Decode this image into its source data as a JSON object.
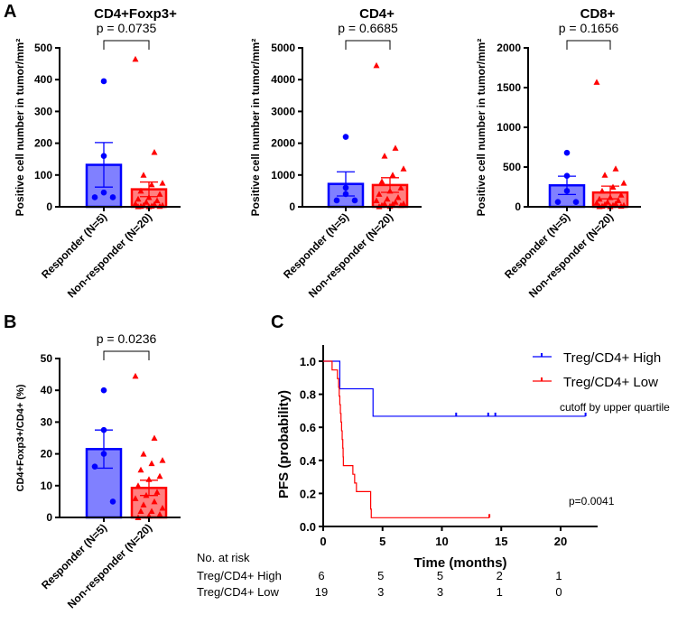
{
  "colors": {
    "responder": "#0000ff",
    "responder_fill": "#8080ff",
    "nonresponder": "#ff0000",
    "nonresponder_fill": "#ff8080",
    "axis": "#000000"
  },
  "panel_letters": [
    "A",
    "B",
    "C"
  ],
  "chart_data": [
    {
      "type": "bar",
      "panel": "A",
      "title": "CD4+Foxp3+",
      "ylabel": "Positive cell number in tumor/mm²",
      "ylim": [
        0,
        500
      ],
      "yticks": [
        "0",
        "100",
        "200",
        "300",
        "400",
        "500"
      ],
      "categories": [
        "Responder (N=5)",
        "Non-responder (N=20)"
      ],
      "means": [
        132,
        55
      ],
      "sem": [
        70,
        23
      ],
      "points": [
        [
          395,
          160,
          45,
          30,
          30
        ],
        [
          465,
          172,
          100,
          75,
          70,
          50,
          40,
          30,
          25,
          20,
          15,
          10,
          8,
          5,
          5,
          3,
          2,
          2,
          1,
          1
        ]
      ],
      "pvalue": "p = 0.0735"
    },
    {
      "type": "bar",
      "panel": "A",
      "title": "CD4+",
      "ylabel": "Positive cell number in tumor/mm²",
      "ylim": [
        0,
        5000
      ],
      "yticks": [
        "0",
        "1000",
        "2000",
        "3000",
        "4000",
        "5000"
      ],
      "categories": [
        "Responder (N=5)",
        "Non-responder (N=20)"
      ],
      "means": [
        720,
        685
      ],
      "sem": [
        380,
        230
      ],
      "points": [
        [
          2200,
          600,
          400,
          200,
          200
        ],
        [
          4450,
          1850,
          1600,
          1200,
          1000,
          800,
          600,
          500,
          400,
          300,
          250,
          200,
          150,
          100,
          100,
          80,
          50,
          50,
          20,
          10
        ]
      ],
      "pvalue": "p = 0.6685"
    },
    {
      "type": "bar",
      "panel": "A",
      "title": "CD8+",
      "ylabel": "Positive cell number in tumor/mm²",
      "ylim": [
        0,
        2000
      ],
      "yticks": [
        "0",
        "500",
        "1000",
        "1500",
        "2000"
      ],
      "categories": [
        "Responder (N=5)",
        "Non-responder (N=20)"
      ],
      "means": [
        270,
        180
      ],
      "sem": [
        115,
        80
      ],
      "points": [
        [
          680,
          390,
          200,
          60,
          60
        ],
        [
          1570,
          480,
          400,
          300,
          250,
          200,
          150,
          120,
          100,
          80,
          60,
          50,
          40,
          30,
          20,
          20,
          10,
          10,
          5,
          5
        ]
      ],
      "pvalue": "p = 0.1656"
    },
    {
      "type": "bar",
      "panel": "B",
      "title": "",
      "ylabel": "CD4+Foxp3+/CD4+ (%)",
      "ylim": [
        0,
        50
      ],
      "yticks": [
        "0",
        "10",
        "20",
        "30",
        "40",
        "50"
      ],
      "categories": [
        "Responder (N=5)",
        "Non-responder (N=20)"
      ],
      "means": [
        21.5,
        9.3
      ],
      "sem": [
        6,
        2.4
      ],
      "points": [
        [
          40,
          27.5,
          20,
          16,
          5
        ],
        [
          44.5,
          25,
          20,
          18,
          17,
          15,
          13,
          12,
          10,
          8,
          7,
          6,
          5,
          4,
          3,
          2,
          2,
          1,
          0.5,
          0
        ]
      ],
      "pvalue": "p = 0.0236"
    },
    {
      "type": "line",
      "panel": "C",
      "subtype": "kaplan-meier",
      "xlabel": "Time (months)",
      "ylabel": "PFS (probability)",
      "xlim": [
        0,
        23
      ],
      "ylim": [
        0,
        1.1
      ],
      "xticks": [
        "0",
        "5",
        "10",
        "15",
        "20"
      ],
      "yticks": [
        "0.0",
        "0.2",
        "0.4",
        "0.6",
        "0.8",
        "1.0"
      ],
      "series": [
        {
          "name": "Treg/CD4+ High",
          "steps": [
            [
              0,
              1.0
            ],
            [
              1.4,
              0.833
            ],
            [
              4.2,
              0.667
            ],
            [
              22.1,
              0.667
            ]
          ],
          "censored": [
            [
              11.2,
              0.667
            ],
            [
              13.9,
              0.667
            ],
            [
              14.5,
              0.667
            ],
            [
              22.1,
              0.667
            ]
          ]
        },
        {
          "name": "Treg/CD4+ Low",
          "steps": [
            [
              0,
              1.0
            ],
            [
              0.75,
              0.947
            ],
            [
              1.2,
              0.895
            ],
            [
              1.3,
              0.842
            ],
            [
              1.35,
              0.789
            ],
            [
              1.4,
              0.737
            ],
            [
              1.45,
              0.684
            ],
            [
              1.5,
              0.632
            ],
            [
              1.55,
              0.579
            ],
            [
              1.6,
              0.526
            ],
            [
              1.65,
              0.474
            ],
            [
              1.68,
              0.421
            ],
            [
              1.7,
              0.368
            ],
            [
              2.5,
              0.316
            ],
            [
              2.65,
              0.263
            ],
            [
              2.8,
              0.211
            ],
            [
              4.0,
              0.105
            ],
            [
              4.05,
              0.053
            ],
            [
              14.0,
              0.053
            ]
          ],
          "censored": [
            [
              14.0,
              0.053
            ]
          ]
        }
      ],
      "annotation_cutoff": "cutoff by upper quartile",
      "pvalue": "p=0.0041",
      "risk_table": {
        "title": "No. at risk",
        "rows": [
          {
            "label": "Treg/CD4+ High",
            "values": [
              "6",
              "5",
              "5",
              "2",
              "1"
            ]
          },
          {
            "label": "Treg/CD4+ Low",
            "values": [
              "19",
              "3",
              "3",
              "1",
              "0"
            ]
          }
        ]
      },
      "legend": "top-right"
    }
  ]
}
